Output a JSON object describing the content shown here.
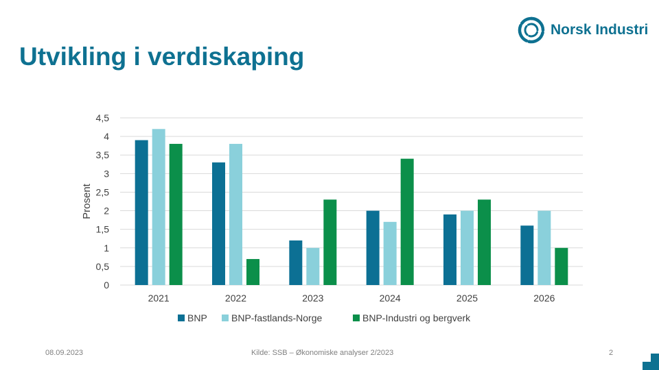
{
  "slide": {
    "title": "Utvikling i verdiskaping",
    "date": "08.09.2023",
    "source": "Kilde: SSB – Økonomiske analyser 2/2023",
    "page_number": "2"
  },
  "logo": {
    "text": "Norsk Industri",
    "icon": "norsk-industri-swirl-icon",
    "color": "#0e7191"
  },
  "colors": {
    "title": "#0e7191",
    "grid": "#d9d9d9",
    "corner": "#0e7191"
  },
  "chart_data": {
    "type": "bar",
    "categories": [
      "2021",
      "2022",
      "2023",
      "2024",
      "2025",
      "2026"
    ],
    "series": [
      {
        "name": "BNP",
        "color": "#0c7094",
        "values": [
          3.9,
          3.3,
          1.2,
          2.0,
          1.9,
          1.6
        ]
      },
      {
        "name": "BNP-fastlands-Norge",
        "color": "#8ad0db",
        "values": [
          4.2,
          3.8,
          1.0,
          1.7,
          2.0,
          2.0
        ]
      },
      {
        "name": "BNP-Industri og bergverk",
        "color": "#0b8f4a",
        "values": [
          3.8,
          0.7,
          2.3,
          3.4,
          2.3,
          1.0
        ]
      }
    ],
    "title": "",
    "xlabel": "",
    "ylabel": "Prosent",
    "ylim": [
      0,
      4.5
    ],
    "yticks": [
      "0",
      "0,5",
      "1",
      "1,5",
      "2",
      "2,5",
      "3",
      "3,5",
      "4",
      "4,5"
    ],
    "grid": true,
    "legend": "bottom"
  }
}
